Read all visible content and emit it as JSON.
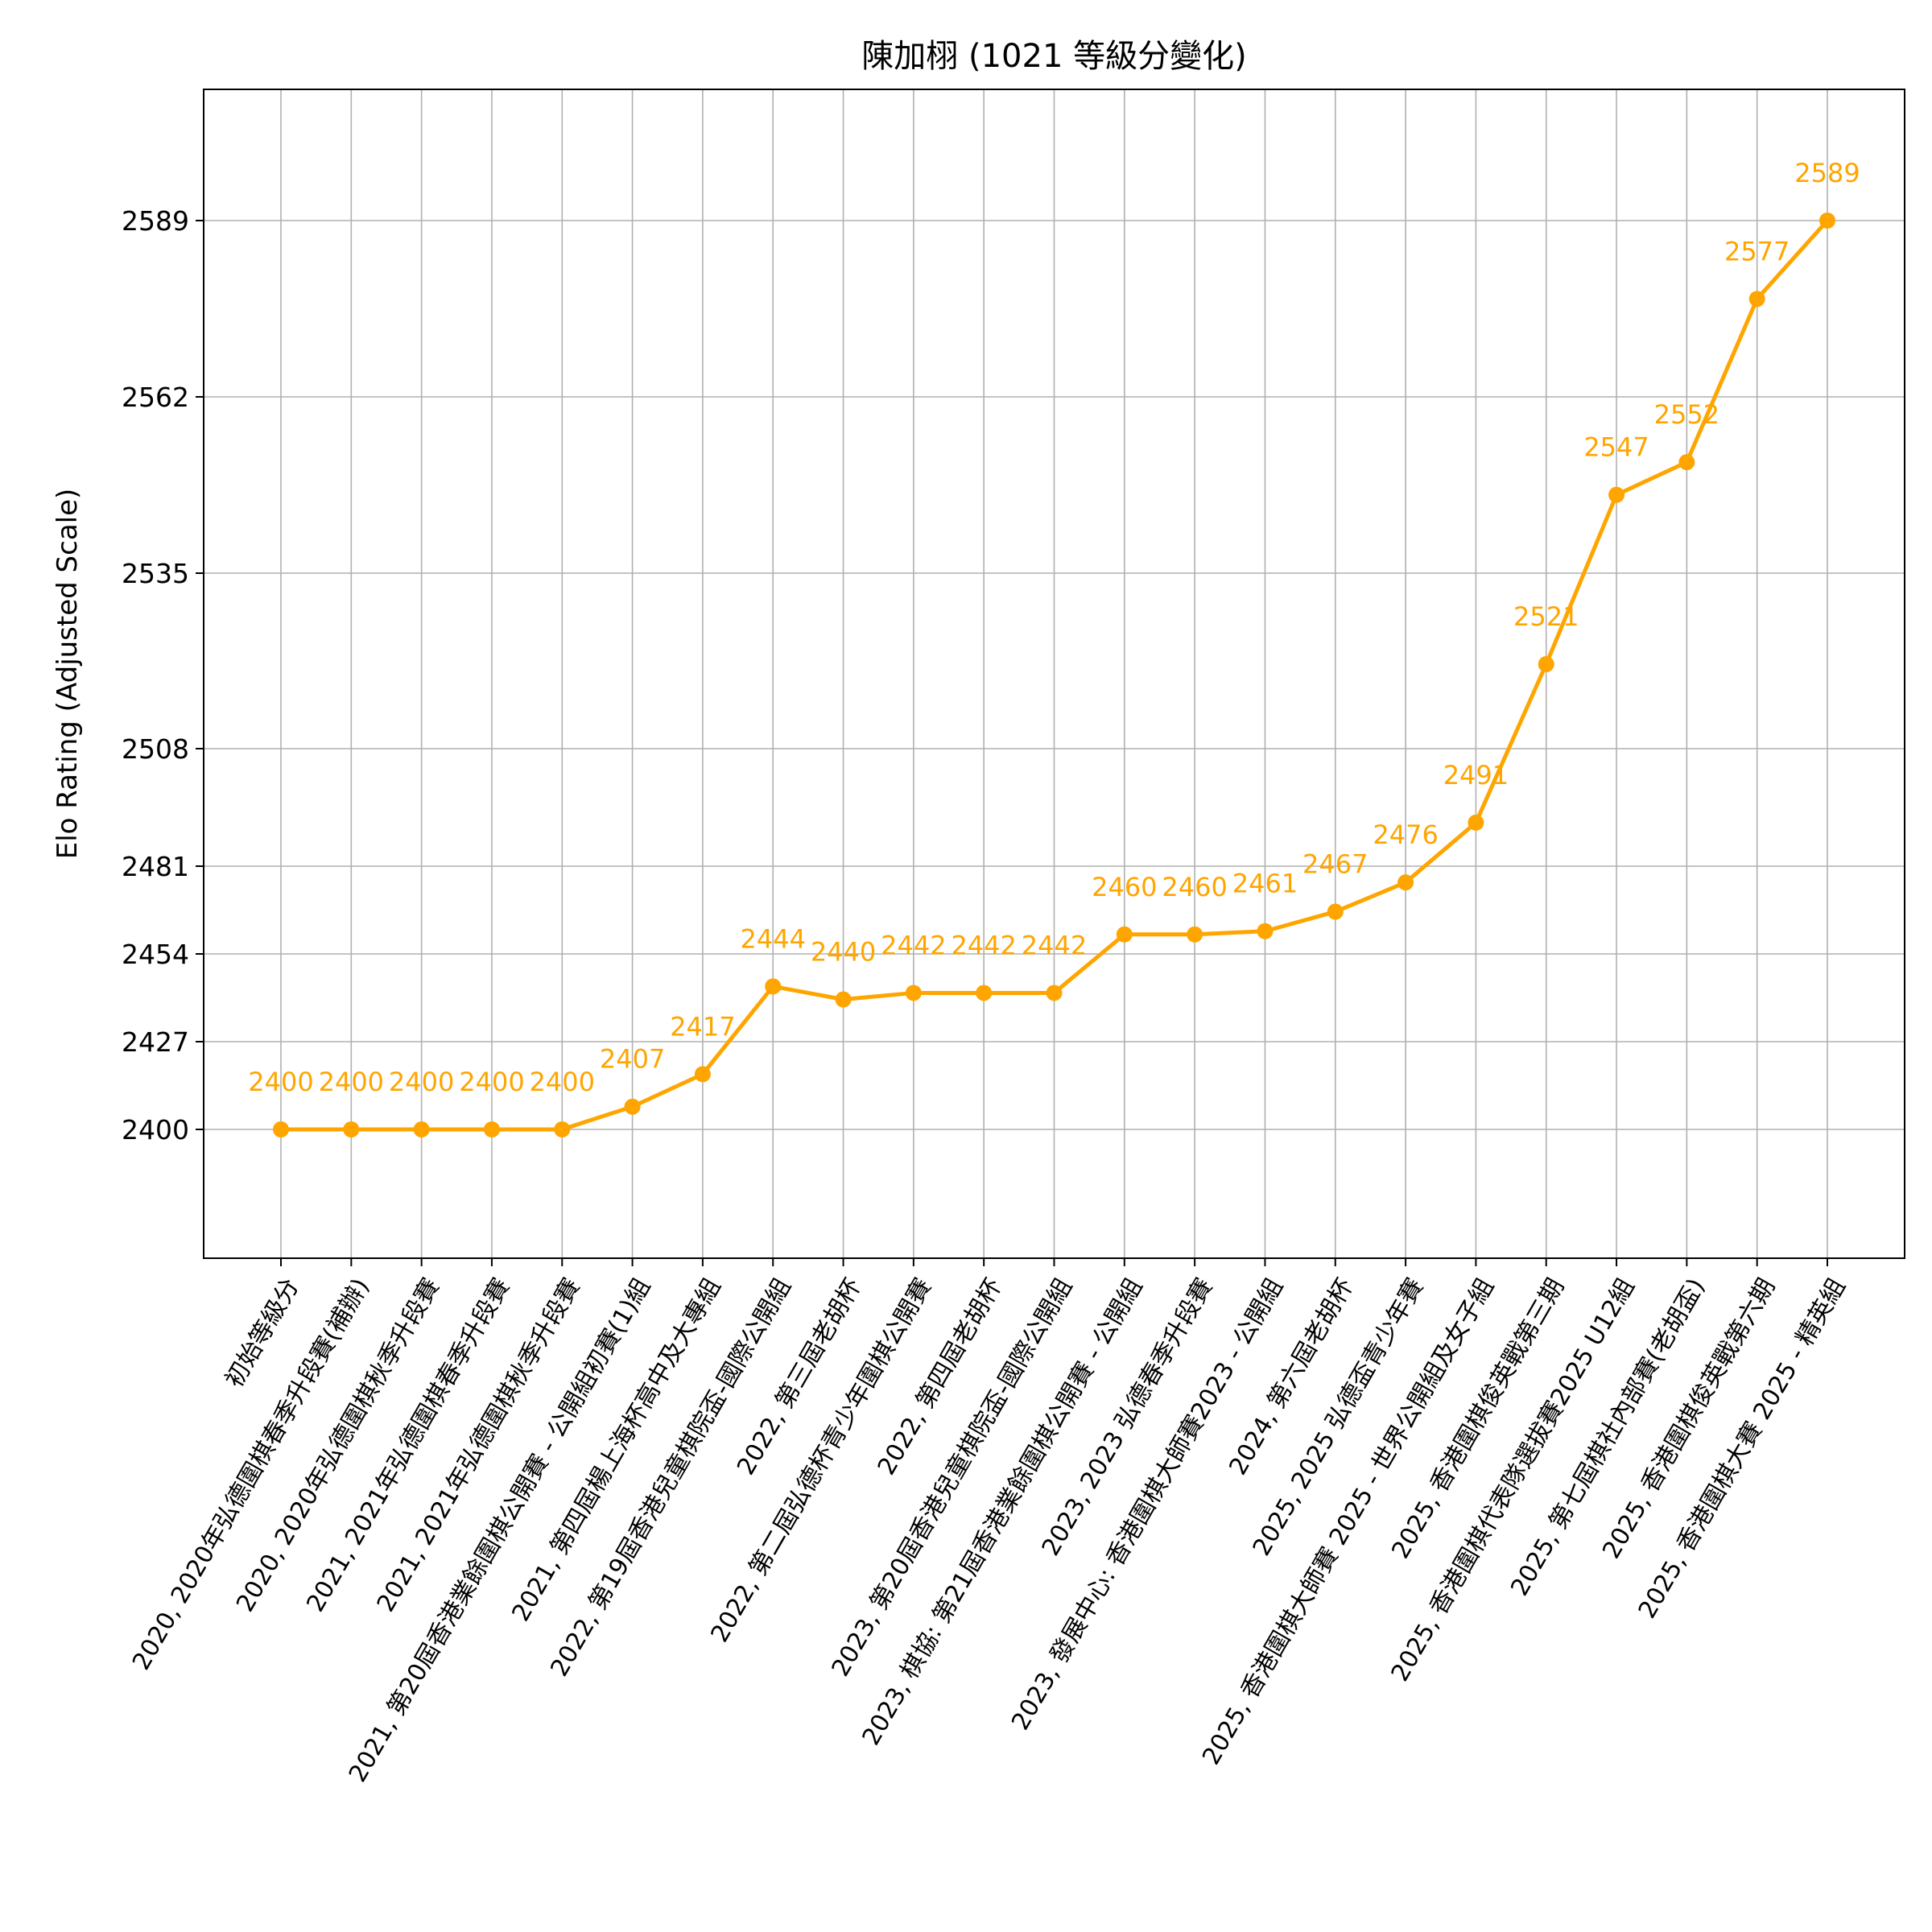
{
  "chart_data": {
    "type": "line",
    "title": "陳加栩 (1021 等級分變化)",
    "xlabel": "",
    "ylabel": "Elo Rating (Adjusted Scale)",
    "color": "#ffa500",
    "grid": true,
    "categories": [
      "初始等級分",
      "2020, 2020年弘德圍棋春季升段賽(補辦)",
      "2020, 2020年弘德圍棋秋季升段賽",
      "2021, 2021年弘德圍棋春季升段賽",
      "2021, 2021年弘德圍棋秋季升段賽",
      "2021, 第20屆香港業餘圍棋公開賽 - 公開組初賽(1)組",
      "2021, 第四屆楊上海杯高中及大專組",
      "2022, 第19屆香港兒童棋院盃-國際公開組",
      "2022, 第三屆老胡杯",
      "2022, 第二屆弘德杯青少年圍棋公開賽",
      "2022, 第四屆老胡杯",
      "2023, 第20屆香港兒童棋院盃-國際公開組",
      "2023, 棋協: 第21屆香港業餘圍棋公開賽 - 公開組",
      "2023, 2023 弘德春季升段賽",
      "2023, 發展中心: 香港圍棋大師賽2023 - 公開組",
      "2024, 第六屆老胡杯",
      "2025, 2025 弘德盃青少年賽",
      "2025, 香港圍棋大師賽 2025 - 世界公開組及女子組",
      "2025, 香港圍棋俊英戰第三期",
      "2025, 香港圍棋代表隊選拔賽2025 U12組",
      "2025, 第七屆棋社內部賽(老胡盃)",
      "2025, 香港圍棋俊英戰第六期",
      "2025, 香港圍棋大賽 2025 - 精英組"
    ],
    "values": [
      2400,
      2400,
      2400,
      2400,
      2400,
      2407,
      2417,
      2444,
      2440,
      2442,
      2442,
      2442,
      2460,
      2460,
      2461,
      2467,
      2476,
      2491,
      2521,
      2547,
      2552,
      2577,
      2589
    ],
    "data_labels": [
      "2400",
      "2400",
      "2400",
      "2400",
      "2400",
      "2407",
      "2417",
      "2444",
      "2440",
      "2442",
      "2442",
      "2442",
      "2460",
      "2460",
      "2461",
      "2467",
      "2476",
      "2491",
      "2521",
      "2547",
      "2552",
      "2577",
      "2589"
    ],
    "yticks": [
      2400,
      2427,
      2454,
      2481,
      2508,
      2535,
      2562,
      2589
    ],
    "ytick_labels": [
      "2400",
      "2427",
      "2454",
      "2481",
      "2508",
      "2535",
      "2562",
      "2589"
    ],
    "ylim": [
      2380,
      2608
    ],
    "xtick_rotation": 60
  }
}
